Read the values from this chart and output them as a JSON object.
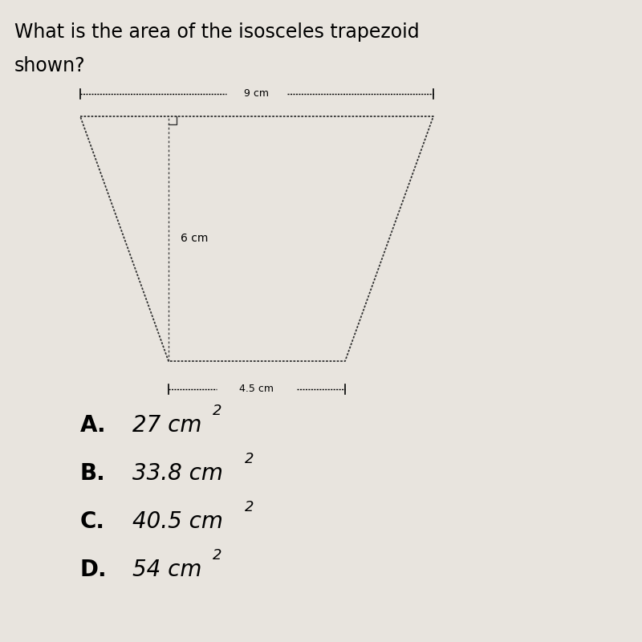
{
  "title_line1": "What is the area of the isosceles trapezoid",
  "title_line2": "shown?",
  "title_fontsize": 17,
  "background_color": "#e8e4de",
  "top_label": "9 cm",
  "bottom_label": "4.5 cm",
  "height_label": "6 cm",
  "choices": [
    {
      "letter": "A.",
      "value": "27 cm",
      "sup": "2"
    },
    {
      "letter": "B.",
      "value": "33.8 cm",
      "sup": "2"
    },
    {
      "letter": "C.",
      "value": "40.5 cm",
      "sup": "2"
    },
    {
      "letter": "D.",
      "value": "54 cm",
      "sup": "2"
    }
  ],
  "choice_fontsize": 20,
  "letter_fontsize": 20
}
